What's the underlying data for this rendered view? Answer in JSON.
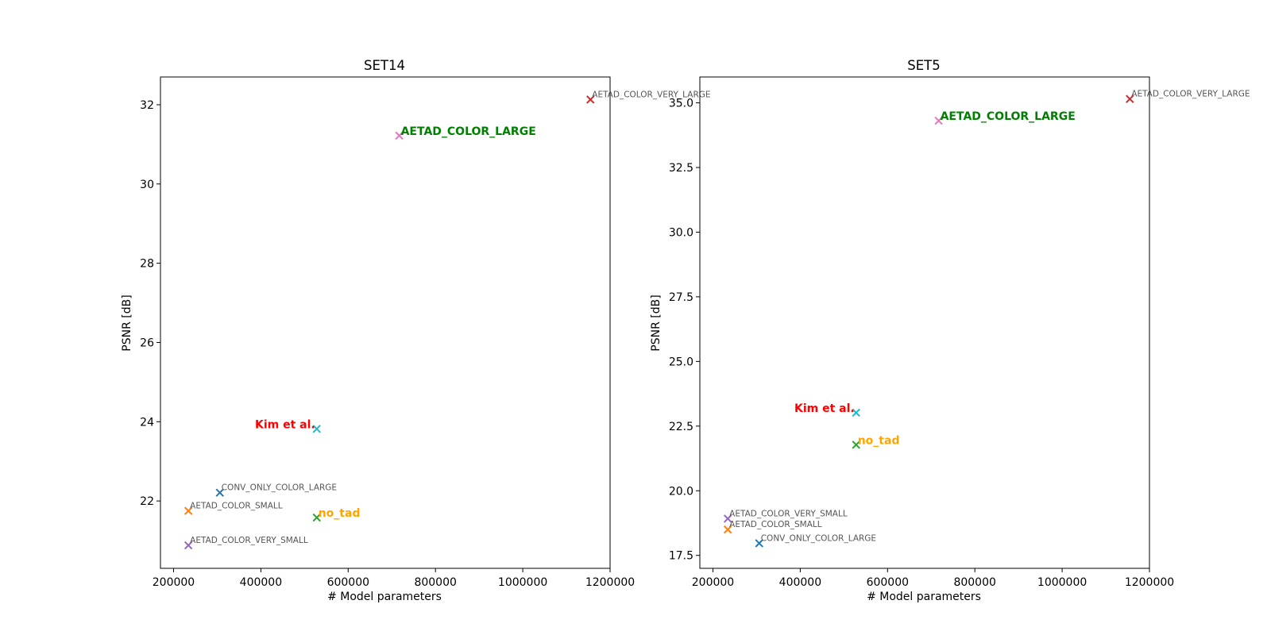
{
  "chart_data": [
    {
      "type": "scatter",
      "title": "SET14",
      "xlabel": "# Model parameters",
      "ylabel": "PSNR [dB]",
      "xlim": [
        170000,
        1200000
      ],
      "ylim": [
        20.3,
        32.7
      ],
      "xticks": [
        200000,
        400000,
        600000,
        800000,
        1000000,
        1200000
      ],
      "yticks": [
        22,
        24,
        26,
        28,
        30,
        32
      ],
      "grid": false,
      "points": [
        {
          "label": "AETAD_COLOR_VERY_LARGE",
          "x": 1155000,
          "y": 32.13,
          "marker_color": "#d62728",
          "label_style": "small",
          "label_color": "#555555",
          "label_side": "right"
        },
        {
          "label": "AETAD_COLOR_LARGE",
          "x": 717000,
          "y": 31.22,
          "marker_color": "#e377c2",
          "label_style": "big",
          "label_color": "#008000",
          "label_side": "right"
        },
        {
          "label": "Kim et al.",
          "x": 528000,
          "y": 23.82,
          "marker_color": "#17becf",
          "label_style": "big",
          "label_color": "#ff0000",
          "label_side": "left"
        },
        {
          "label": "CONV_ONLY_COLOR_LARGE",
          "x": 306000,
          "y": 22.21,
          "marker_color": "#1f77b4",
          "label_style": "small",
          "label_color": "#555555",
          "label_side": "right"
        },
        {
          "label": "AETAD_COLOR_SMALL",
          "x": 234000,
          "y": 21.75,
          "marker_color": "#ff7f0e",
          "label_style": "small",
          "label_color": "#555555",
          "label_side": "right"
        },
        {
          "label": "no_tad",
          "x": 528000,
          "y": 21.58,
          "marker_color": "#2ca02c",
          "label_style": "big",
          "label_color": "#ffa500",
          "label_side": "right"
        },
        {
          "label": "AETAD_COLOR_VERY_SMALL",
          "x": 234000,
          "y": 20.88,
          "marker_color": "#9467bd",
          "label_style": "small",
          "label_color": "#555555",
          "label_side": "right"
        }
      ]
    },
    {
      "type": "scatter",
      "title": "SET5",
      "xlabel": "# Model parameters",
      "ylabel": "PSNR [dB]",
      "xlim": [
        170000,
        1200000
      ],
      "ylim": [
        17.0,
        36.0
      ],
      "xticks": [
        200000,
        400000,
        600000,
        800000,
        1000000,
        1200000
      ],
      "yticks": [
        17.5,
        20.0,
        22.5,
        25.0,
        27.5,
        30.0,
        32.5,
        35.0
      ],
      "grid": false,
      "points": [
        {
          "label": "AETAD_COLOR_VERY_LARGE",
          "x": 1155000,
          "y": 35.15,
          "marker_color": "#d62728",
          "label_style": "small",
          "label_color": "#555555",
          "label_side": "right"
        },
        {
          "label": "AETAD_COLOR_LARGE",
          "x": 717000,
          "y": 34.31,
          "marker_color": "#e377c2",
          "label_style": "big",
          "label_color": "#008000",
          "label_side": "right"
        },
        {
          "label": "Kim et al.",
          "x": 528000,
          "y": 23.02,
          "marker_color": "#17becf",
          "label_style": "big",
          "label_color": "#ff0000",
          "label_side": "left"
        },
        {
          "label": "no_tad",
          "x": 528000,
          "y": 21.78,
          "marker_color": "#2ca02c",
          "label_style": "big",
          "label_color": "#ffa500",
          "label_side": "right"
        },
        {
          "label": "AETAD_COLOR_VERY_SMALL",
          "x": 234000,
          "y": 18.92,
          "marker_color": "#9467bd",
          "label_style": "small",
          "label_color": "#555555",
          "label_side": "right"
        },
        {
          "label": "AETAD_COLOR_SMALL",
          "x": 234000,
          "y": 18.5,
          "marker_color": "#ff7f0e",
          "label_style": "small",
          "label_color": "#555555",
          "label_side": "right"
        },
        {
          "label": "CONV_ONLY_COLOR_LARGE",
          "x": 306000,
          "y": 17.97,
          "marker_color": "#1f77b4",
          "label_style": "small",
          "label_color": "#555555",
          "label_side": "right"
        }
      ]
    }
  ]
}
